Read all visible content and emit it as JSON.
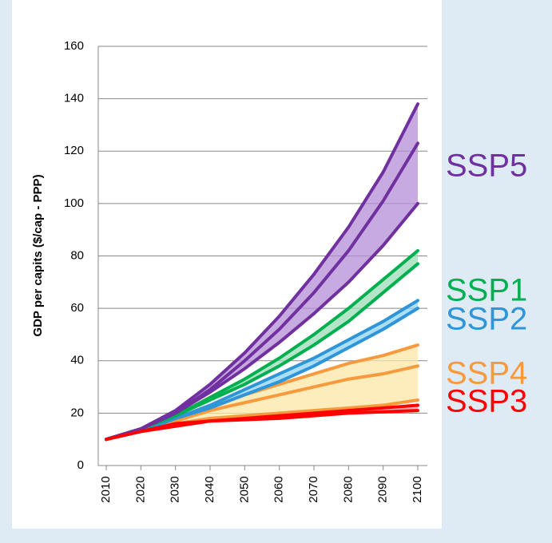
{
  "chart_data": {
    "type": "line",
    "y_label": "GDP per capits ($/cap - PPP)",
    "x": [
      2010,
      2020,
      2030,
      2040,
      2050,
      2060,
      2070,
      2080,
      2090,
      2100
    ],
    "xlim": [
      2010,
      2100
    ],
    "xticks": [
      2010,
      2020,
      2030,
      2040,
      2050,
      2060,
      2070,
      2080,
      2090,
      2100
    ],
    "ylim": [
      0,
      160
    ],
    "yticks": [
      0,
      20,
      40,
      60,
      80,
      100,
      120,
      140,
      160
    ],
    "series": [
      {
        "name": "SSP5",
        "color": "#7030a0",
        "band_color": "#b48fd6",
        "lines": [
          [
            10,
            14,
            21,
            31,
            43,
            57,
            73,
            91,
            112,
            138
          ],
          [
            10,
            14,
            20,
            29,
            40,
            52,
            66,
            82,
            101,
            123
          ],
          [
            10,
            14,
            20,
            28,
            37,
            47,
            58,
            70,
            84,
            100
          ]
        ]
      },
      {
        "name": "SSP1",
        "color": "#00b050",
        "band_color": "#9bdcb6",
        "lines": [
          [
            10,
            14,
            19,
            26,
            33,
            41,
            50,
            60,
            71,
            82
          ],
          [
            10,
            14,
            19,
            25,
            31,
            38,
            46,
            55,
            66,
            77
          ]
        ]
      },
      {
        "name": "SSP2",
        "color": "#2e95d8",
        "band_color": "#8fd4f6",
        "lines": [
          [
            10,
            13,
            18,
            23,
            29,
            35,
            41,
            48,
            55,
            63
          ],
          [
            10,
            13,
            18,
            22,
            27,
            32,
            38,
            45,
            52,
            60
          ]
        ]
      },
      {
        "name": "SSP4",
        "color": "#f79a3e",
        "band_color": "#fde7a6",
        "lines": [
          [
            10,
            13,
            18,
            22,
            27,
            31,
            35,
            39,
            42,
            46
          ],
          [
            10,
            13,
            17,
            21,
            24,
            27,
            30,
            33,
            35,
            38
          ],
          [
            10,
            13,
            16,
            18,
            19,
            20,
            21,
            22,
            23,
            25
          ]
        ]
      },
      {
        "name": "SSP3",
        "color": "#ff0000",
        "band_color": "#ff9999",
        "lines": [
          [
            10,
            13,
            16,
            17,
            18,
            19,
            20,
            21,
            22,
            23
          ],
          [
            10,
            13,
            15,
            17,
            17.5,
            18,
            19,
            20,
            20.5,
            21
          ]
        ]
      }
    ]
  }
}
